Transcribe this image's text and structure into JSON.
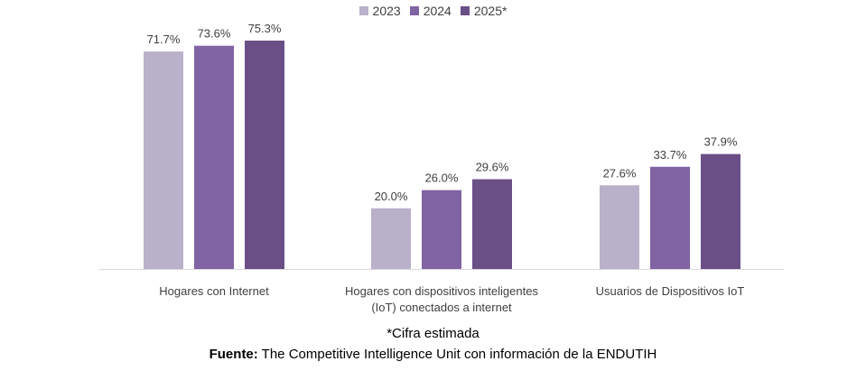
{
  "chart_data": {
    "type": "bar",
    "title": "",
    "xlabel": "",
    "ylabel": "",
    "ylim": [
      0,
      80
    ],
    "grid": false,
    "legend_position": "top-center",
    "categories": [
      [
        "Hogares con Internet"
      ],
      [
        "Hogares con dispositivos inteligentes",
        "(IoT) conectados a internet"
      ],
      [
        "Usuarios de Dispositivos IoT"
      ]
    ],
    "series": [
      {
        "name": "2023",
        "color": "#b9b0c9",
        "values": [
          71.7,
          20.0,
          27.6
        ],
        "labels": [
          "71.7%",
          "20.0%",
          "27.6%"
        ]
      },
      {
        "name": "2024",
        "color": "#8063a3",
        "values": [
          73.6,
          26.0,
          33.7
        ],
        "labels": [
          "73.6%",
          "26.0%",
          "33.7%"
        ]
      },
      {
        "name": "2025*",
        "color": "#6a4f87",
        "values": [
          75.3,
          29.6,
          37.9
        ],
        "labels": [
          "75.3%",
          "29.6%",
          "37.9%"
        ]
      }
    ]
  },
  "legend": {
    "items": [
      {
        "label": "2023",
        "color": "#b9b0c9"
      },
      {
        "label": "2024",
        "color": "#8063a3"
      },
      {
        "label": "2025*",
        "color": "#6a4f87"
      }
    ]
  },
  "footer": {
    "note": "*Cifra estimada",
    "source_label": "Fuente:",
    "source_text": " The Competitive Intelligence Unit con información de la ENDUTIH"
  }
}
